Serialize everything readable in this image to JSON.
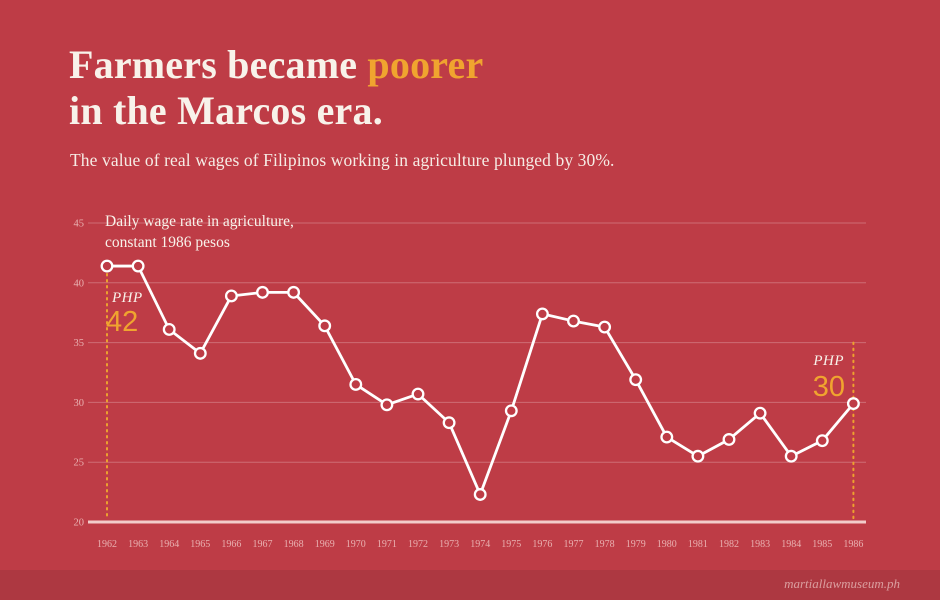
{
  "title": {
    "line1_white": "Farmers became ",
    "line1_accent": "poorer",
    "line2": "in the Marcos era."
  },
  "subtitle": "The value of real wages of Filipinos working in agriculture plunged by 30%.",
  "annotation": {
    "line1": "Daily wage rate in agriculture,",
    "line2": "constant 1986 pesos"
  },
  "start_label": {
    "currency": "PHP",
    "value": "42"
  },
  "end_label": {
    "currency": "PHP",
    "value": "30"
  },
  "footer": {
    "watermark": "martiallawmuseum.ph"
  },
  "colors": {
    "background": "#be3c46",
    "footer_band": "#ad3841",
    "accent_yellow": "#f0a42f",
    "line_white": "#ffffff",
    "grid": "rgba(255,255,255,0.25)",
    "axis": "rgba(255,240,235,0.8)",
    "tick_text": "rgba(255,235,230,0.65)",
    "guide_dotted": "#eda12f"
  },
  "chart_data": {
    "type": "line",
    "title": "Daily wage rate in agriculture, constant 1986 pesos",
    "x": [
      1962,
      1963,
      1964,
      1965,
      1966,
      1967,
      1968,
      1969,
      1970,
      1971,
      1972,
      1973,
      1974,
      1975,
      1976,
      1977,
      1978,
      1979,
      1980,
      1981,
      1982,
      1983,
      1984,
      1985,
      1986
    ],
    "values": [
      41.4,
      41.4,
      36.1,
      34.1,
      38.9,
      39.2,
      39.2,
      36.4,
      31.5,
      29.8,
      30.7,
      28.3,
      22.3,
      29.3,
      37.4,
      36.8,
      36.3,
      31.9,
      27.1,
      25.5,
      26.9,
      29.1,
      25.5,
      26.8,
      29.9
    ],
    "ylim": [
      20,
      45
    ],
    "y_ticks": [
      20,
      25,
      30,
      35,
      40,
      45
    ],
    "grid": true,
    "legend": "none",
    "marker": "open-circle",
    "annotations": [
      {
        "x": 1962,
        "label": "PHP 42"
      },
      {
        "x": 1986,
        "label": "PHP 30"
      }
    ]
  }
}
